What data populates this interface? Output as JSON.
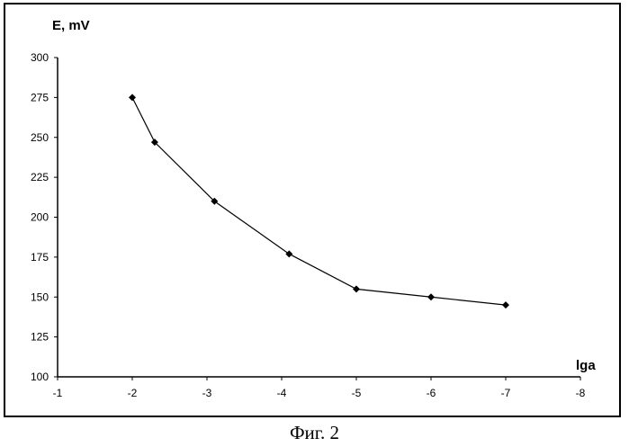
{
  "chart_data": {
    "type": "line",
    "title": "",
    "xlabel": "lga",
    "ylabel": "E, mV",
    "x_ticks": [
      "-1",
      "-2",
      "-3",
      "-4",
      "-5",
      "-6",
      "-7",
      "-8"
    ],
    "y_ticks": [
      "300",
      "275",
      "250",
      "225",
      "200",
      "175",
      "150",
      "125",
      "100"
    ],
    "xlim": [
      -1,
      -8
    ],
    "ylim": [
      100,
      300
    ],
    "grid": false,
    "series": [
      {
        "x": [
          -2.0,
          -2.3,
          -3.1,
          -4.1,
          -5.0,
          -6.0,
          -7.0
        ],
        "y": [
          275,
          247,
          210,
          177,
          155,
          150,
          145
        ],
        "color": "#000000",
        "marker": "diamond"
      }
    ]
  },
  "caption": "Фиг. 2"
}
